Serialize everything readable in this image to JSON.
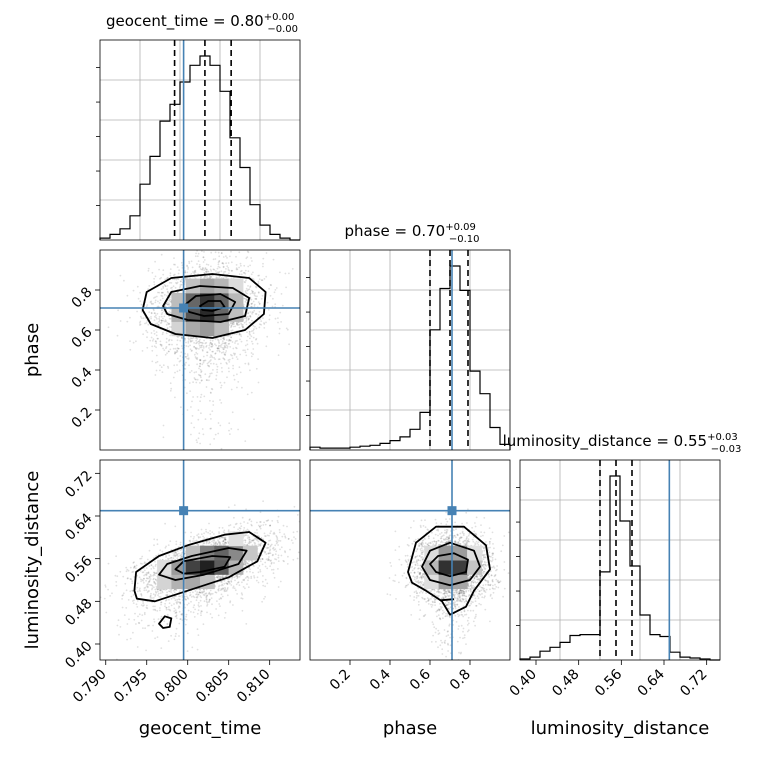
{
  "chart_data": {
    "type": "corner",
    "parameters": [
      "geocent_time",
      "phase",
      "luminosity_distance"
    ],
    "truths": {
      "geocent_time": 0.7995,
      "phase": 0.71,
      "luminosity_distance": 0.65
    },
    "truth_color": "#4682b4",
    "titles": [
      {
        "param": "geocent_time",
        "text": "geocent_time = 0.80",
        "plus": "+0.00",
        "minus": "−0.00"
      },
      {
        "param": "phase",
        "text": "phase = 0.70",
        "plus": "+0.09",
        "minus": "−0.10"
      },
      {
        "param": "luminosity_distance",
        "text": "luminosity_distance = 0.55",
        "plus": "+0.03",
        "minus": "−0.03"
      }
    ],
    "axes": {
      "geocent_time": {
        "range": [
          0.7893,
          0.8137
        ],
        "ticks": [
          "0.790",
          "0.795",
          "0.800",
          "0.805",
          "0.810"
        ],
        "tick_values": [
          0.79,
          0.795,
          0.8,
          0.805,
          0.81
        ]
      },
      "phase": {
        "range": [
          0.0,
          1.0
        ],
        "ticks": [
          "0.2",
          "0.4",
          "0.6",
          "0.8"
        ],
        "tick_values": [
          0.2,
          0.4,
          0.6,
          0.8
        ]
      },
      "luminosity_distance": {
        "range": [
          0.37,
          0.745
        ],
        "ticks": [
          "0.40",
          "0.48",
          "0.56",
          "0.64",
          "0.72"
        ],
        "tick_values": [
          0.4,
          0.48,
          0.56,
          0.64,
          0.72
        ]
      }
    },
    "histograms": {
      "geocent_time": {
        "edges": [
          0.7893,
          0.79052,
          0.79174,
          0.79296,
          0.79418,
          0.7954,
          0.79662,
          0.79784,
          0.79906,
          0.80028,
          0.8015,
          0.80272,
          0.80394,
          0.80516,
          0.80638,
          0.8076,
          0.80882,
          0.81004,
          0.81126,
          0.81248,
          0.8137
        ],
        "counts": [
          0.01,
          0.03,
          0.06,
          0.13,
          0.3,
          0.45,
          0.64,
          0.73,
          0.85,
          0.94,
          0.99,
          0.94,
          0.8,
          0.55,
          0.39,
          0.19,
          0.08,
          0.03,
          0.01,
          0.0
        ],
        "quantiles": [
          0.7984,
          0.8021,
          0.8053
        ]
      },
      "phase": {
        "edges": [
          0.0,
          0.05,
          0.1,
          0.15,
          0.2,
          0.25,
          0.3,
          0.35,
          0.4,
          0.45,
          0.5,
          0.55,
          0.6,
          0.65,
          0.7,
          0.75,
          0.8,
          0.85,
          0.9,
          0.95,
          1.0
        ],
        "counts": [
          0.015,
          0.01,
          0.01,
          0.01,
          0.015,
          0.02,
          0.025,
          0.035,
          0.05,
          0.07,
          0.11,
          0.2,
          0.64,
          0.86,
          0.98,
          0.85,
          0.42,
          0.3,
          0.12,
          0.03
        ],
        "quantiles": [
          0.6,
          0.7,
          0.79
        ]
      },
      "luminosity_distance": {
        "edges": [
          0.37,
          0.38875,
          0.4075,
          0.42625,
          0.445,
          0.46375,
          0.4825,
          0.50125,
          0.52,
          0.53875,
          0.5575,
          0.57625,
          0.595,
          0.61375,
          0.6325,
          0.65125,
          0.67,
          0.68875,
          0.7075,
          0.72625,
          0.745
        ],
        "counts": [
          0.005,
          0.015,
          0.045,
          0.065,
          0.09,
          0.125,
          0.13,
          0.13,
          0.45,
          0.94,
          0.71,
          0.48,
          0.23,
          0.13,
          0.12,
          0.04,
          0.015,
          0.01,
          0.005,
          0.0
        ],
        "quantiles": [
          0.52,
          0.55,
          0.58
        ]
      }
    },
    "pairs": [
      {
        "x": "geocent_time",
        "y": "phase",
        "center": [
          0.8023,
          0.71
        ],
        "sigma": [
          0.0035,
          0.12
        ],
        "corr": 0.1,
        "tail_dir": [
          0.0,
          -1.0
        ],
        "tail_sigma": [
          0.0025,
          0.2
        ],
        "contours": [
          [
            [
              0.7945,
              0.7
            ],
            [
              0.795,
              0.79
            ],
            [
              0.798,
              0.86
            ],
            [
              0.803,
              0.88
            ],
            [
              0.8075,
              0.86
            ],
            [
              0.8095,
              0.79
            ],
            [
              0.8093,
              0.68
            ],
            [
              0.807,
              0.6
            ],
            [
              0.803,
              0.56
            ],
            [
              0.7985,
              0.58
            ],
            [
              0.7955,
              0.63
            ]
          ],
          [
            [
              0.797,
              0.72
            ],
            [
              0.798,
              0.79
            ],
            [
              0.8015,
              0.82
            ],
            [
              0.8055,
              0.81
            ],
            [
              0.8075,
              0.76
            ],
            [
              0.807,
              0.67
            ],
            [
              0.804,
              0.64
            ],
            [
              0.8,
              0.65
            ],
            [
              0.7975,
              0.68
            ]
          ],
          [
            [
              0.7995,
              0.72
            ],
            [
              0.801,
              0.77
            ],
            [
              0.804,
              0.78
            ],
            [
              0.8058,
              0.74
            ],
            [
              0.805,
              0.68
            ],
            [
              0.802,
              0.67
            ],
            [
              0.8002,
              0.69
            ]
          ],
          [
            [
              0.8015,
              0.72
            ],
            [
              0.8025,
              0.745
            ],
            [
              0.804,
              0.745
            ],
            [
              0.8045,
              0.715
            ],
            [
              0.803,
              0.695
            ],
            [
              0.8018,
              0.7
            ]
          ]
        ]
      },
      {
        "x": "geocent_time",
        "y": "luminosity_distance",
        "center": [
          0.8025,
          0.55
        ],
        "sigma": [
          0.0045,
          0.035
        ],
        "corr": 0.55,
        "tail_dir": [
          -0.6,
          -1.0
        ],
        "tail_sigma": [
          0.003,
          0.04
        ],
        "contours": [
          [
            [
              0.7935,
              0.5
            ],
            [
              0.7937,
              0.535
            ],
            [
              0.7965,
              0.565
            ],
            [
              0.8,
              0.585
            ],
            [
              0.8045,
              0.605
            ],
            [
              0.8075,
              0.61
            ],
            [
              0.8095,
              0.59
            ],
            [
              0.8085,
              0.555
            ],
            [
              0.805,
              0.525
            ],
            [
              0.8,
              0.5
            ],
            [
              0.796,
              0.48
            ],
            [
              0.7938,
              0.485
            ]
          ],
          [
            [
              0.7965,
              0.53
            ],
            [
              0.7975,
              0.55
            ],
            [
              0.8005,
              0.565
            ],
            [
              0.805,
              0.58
            ],
            [
              0.8072,
              0.575
            ],
            [
              0.8062,
              0.55
            ],
            [
              0.802,
              0.53
            ],
            [
              0.7985,
              0.52
            ]
          ],
          [
            [
              0.7985,
              0.54
            ],
            [
              0.7995,
              0.555
            ],
            [
              0.803,
              0.565
            ],
            [
              0.8052,
              0.563
            ],
            [
              0.8045,
              0.545
            ],
            [
              0.8015,
              0.535
            ],
            [
              0.7995,
              0.532
            ]
          ],
          [
            [
              0.7965,
              0.438
            ],
            [
              0.7972,
              0.452
            ],
            [
              0.798,
              0.448
            ],
            [
              0.7978,
              0.432
            ],
            [
              0.797,
              0.43
            ]
          ]
        ]
      },
      {
        "x": "phase",
        "y": "luminosity_distance",
        "center": [
          0.71,
          0.545
        ],
        "sigma": [
          0.1,
          0.033
        ],
        "corr": 0.0,
        "tail_dir": [
          0.0,
          -1.0
        ],
        "tail_sigma": [
          0.06,
          0.05
        ],
        "contours": [
          [
            [
              0.49,
              0.535
            ],
            [
              0.53,
              0.59
            ],
            [
              0.63,
              0.62
            ],
            [
              0.77,
              0.62
            ],
            [
              0.88,
              0.585
            ],
            [
              0.9,
              0.54
            ],
            [
              0.82,
              0.5
            ],
            [
              0.78,
              0.47
            ],
            [
              0.7,
              0.455
            ],
            [
              0.66,
              0.48
            ],
            [
              0.58,
              0.5
            ],
            [
              0.51,
              0.515
            ]
          ],
          [
            [
              0.56,
              0.545
            ],
            [
              0.6,
              0.575
            ],
            [
              0.7,
              0.59
            ],
            [
              0.82,
              0.575
            ],
            [
              0.85,
              0.545
            ],
            [
              0.8,
              0.52
            ],
            [
              0.7,
              0.51
            ],
            [
              0.6,
              0.52
            ]
          ],
          [
            [
              0.6,
              0.55
            ],
            [
              0.64,
              0.565
            ],
            [
              0.72,
              0.57
            ],
            [
              0.79,
              0.558
            ],
            [
              0.78,
              0.535
            ],
            [
              0.7,
              0.527
            ],
            [
              0.63,
              0.535
            ]
          ],
          [
            [
              0.65,
              0.482
            ],
            [
              0.72,
              0.484
            ]
          ]
        ]
      }
    ]
  }
}
